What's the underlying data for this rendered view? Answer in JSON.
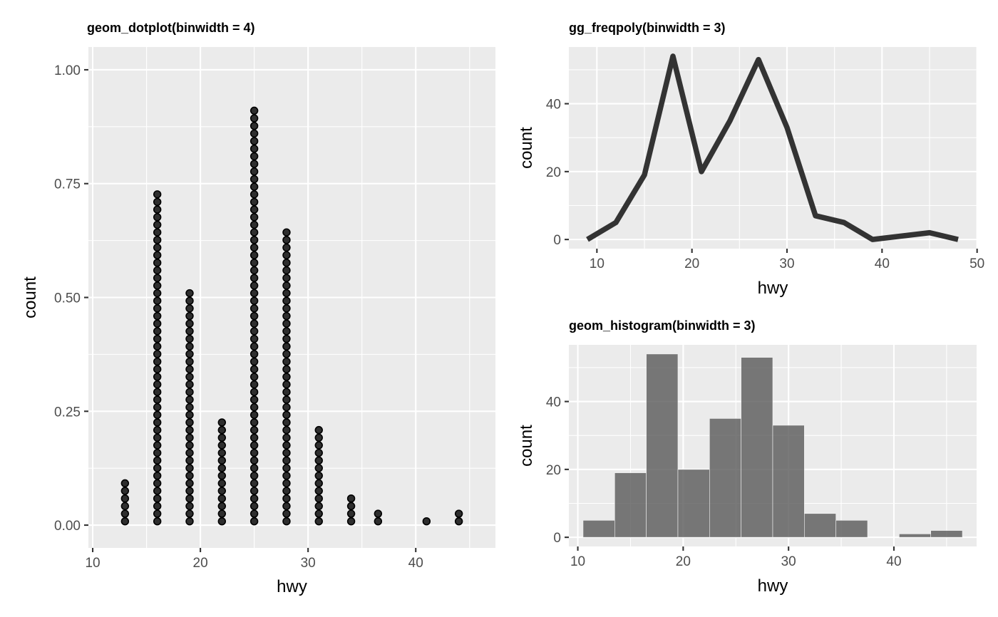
{
  "chart_data": [
    {
      "id": "dotplot",
      "type": "scatter",
      "title": "geom_dotplot(binwidth = 4)",
      "xlabel": "hwy",
      "ylabel": "count",
      "xlim": [
        9.6,
        47.4
      ],
      "ylim": [
        -0.05,
        1.05
      ],
      "x_ticks": [
        10,
        20,
        30,
        40
      ],
      "y_ticks": [
        0.0,
        0.25,
        0.5,
        0.75,
        1.0
      ],
      "x_tick_labels": [
        "10",
        "20",
        "30",
        "40"
      ],
      "y_tick_labels": [
        "0.00",
        "0.25",
        "0.50",
        "0.75",
        "1.00"
      ],
      "grid": true,
      "dot_stack_unit": 0.0167,
      "x": [
        13,
        16,
        19,
        22,
        25,
        28,
        31,
        34,
        36.5,
        41,
        44
      ],
      "dot_counts": [
        6,
        44,
        31,
        14,
        55,
        39,
        13,
        4,
        2,
        1,
        2
      ]
    },
    {
      "id": "freqpoly",
      "type": "line",
      "title": "gg_freqpoly(binwidth = 3)",
      "xlabel": "hwy",
      "ylabel": "count",
      "xlim": [
        7.05,
        49.95
      ],
      "ylim": [
        -2.7,
        56.7
      ],
      "x_ticks": [
        10,
        20,
        30,
        40,
        50
      ],
      "y_ticks": [
        0,
        20,
        40
      ],
      "x_tick_labels": [
        "10",
        "20",
        "30",
        "40",
        "50"
      ],
      "y_tick_labels": [
        "0",
        "20",
        "40"
      ],
      "grid": true,
      "x": [
        9,
        12,
        15,
        18,
        21,
        24,
        27,
        30,
        33,
        36,
        39,
        42,
        45,
        48
      ],
      "y": [
        0,
        5,
        19,
        54,
        20,
        35,
        53,
        33,
        7,
        5,
        0,
        1,
        2,
        0
      ]
    },
    {
      "id": "histogram",
      "type": "bar",
      "title": "geom_histogram(binwidth = 3)",
      "xlabel": "hwy",
      "ylabel": "count",
      "xlim": [
        9.15,
        47.85
      ],
      "ylim": [
        -2.7,
        56.7
      ],
      "x_ticks": [
        10,
        20,
        30,
        40
      ],
      "y_ticks": [
        0,
        20,
        40
      ],
      "x_tick_labels": [
        "10",
        "20",
        "30",
        "40"
      ],
      "y_tick_labels": [
        "0",
        "20",
        "40"
      ],
      "grid": true,
      "binwidth": 3,
      "x": [
        12,
        15,
        18,
        21,
        24,
        27,
        30,
        33,
        36,
        39,
        42,
        45
      ],
      "values": [
        5,
        19,
        54,
        20,
        35,
        53,
        33,
        7,
        5,
        0,
        1,
        2
      ]
    }
  ]
}
